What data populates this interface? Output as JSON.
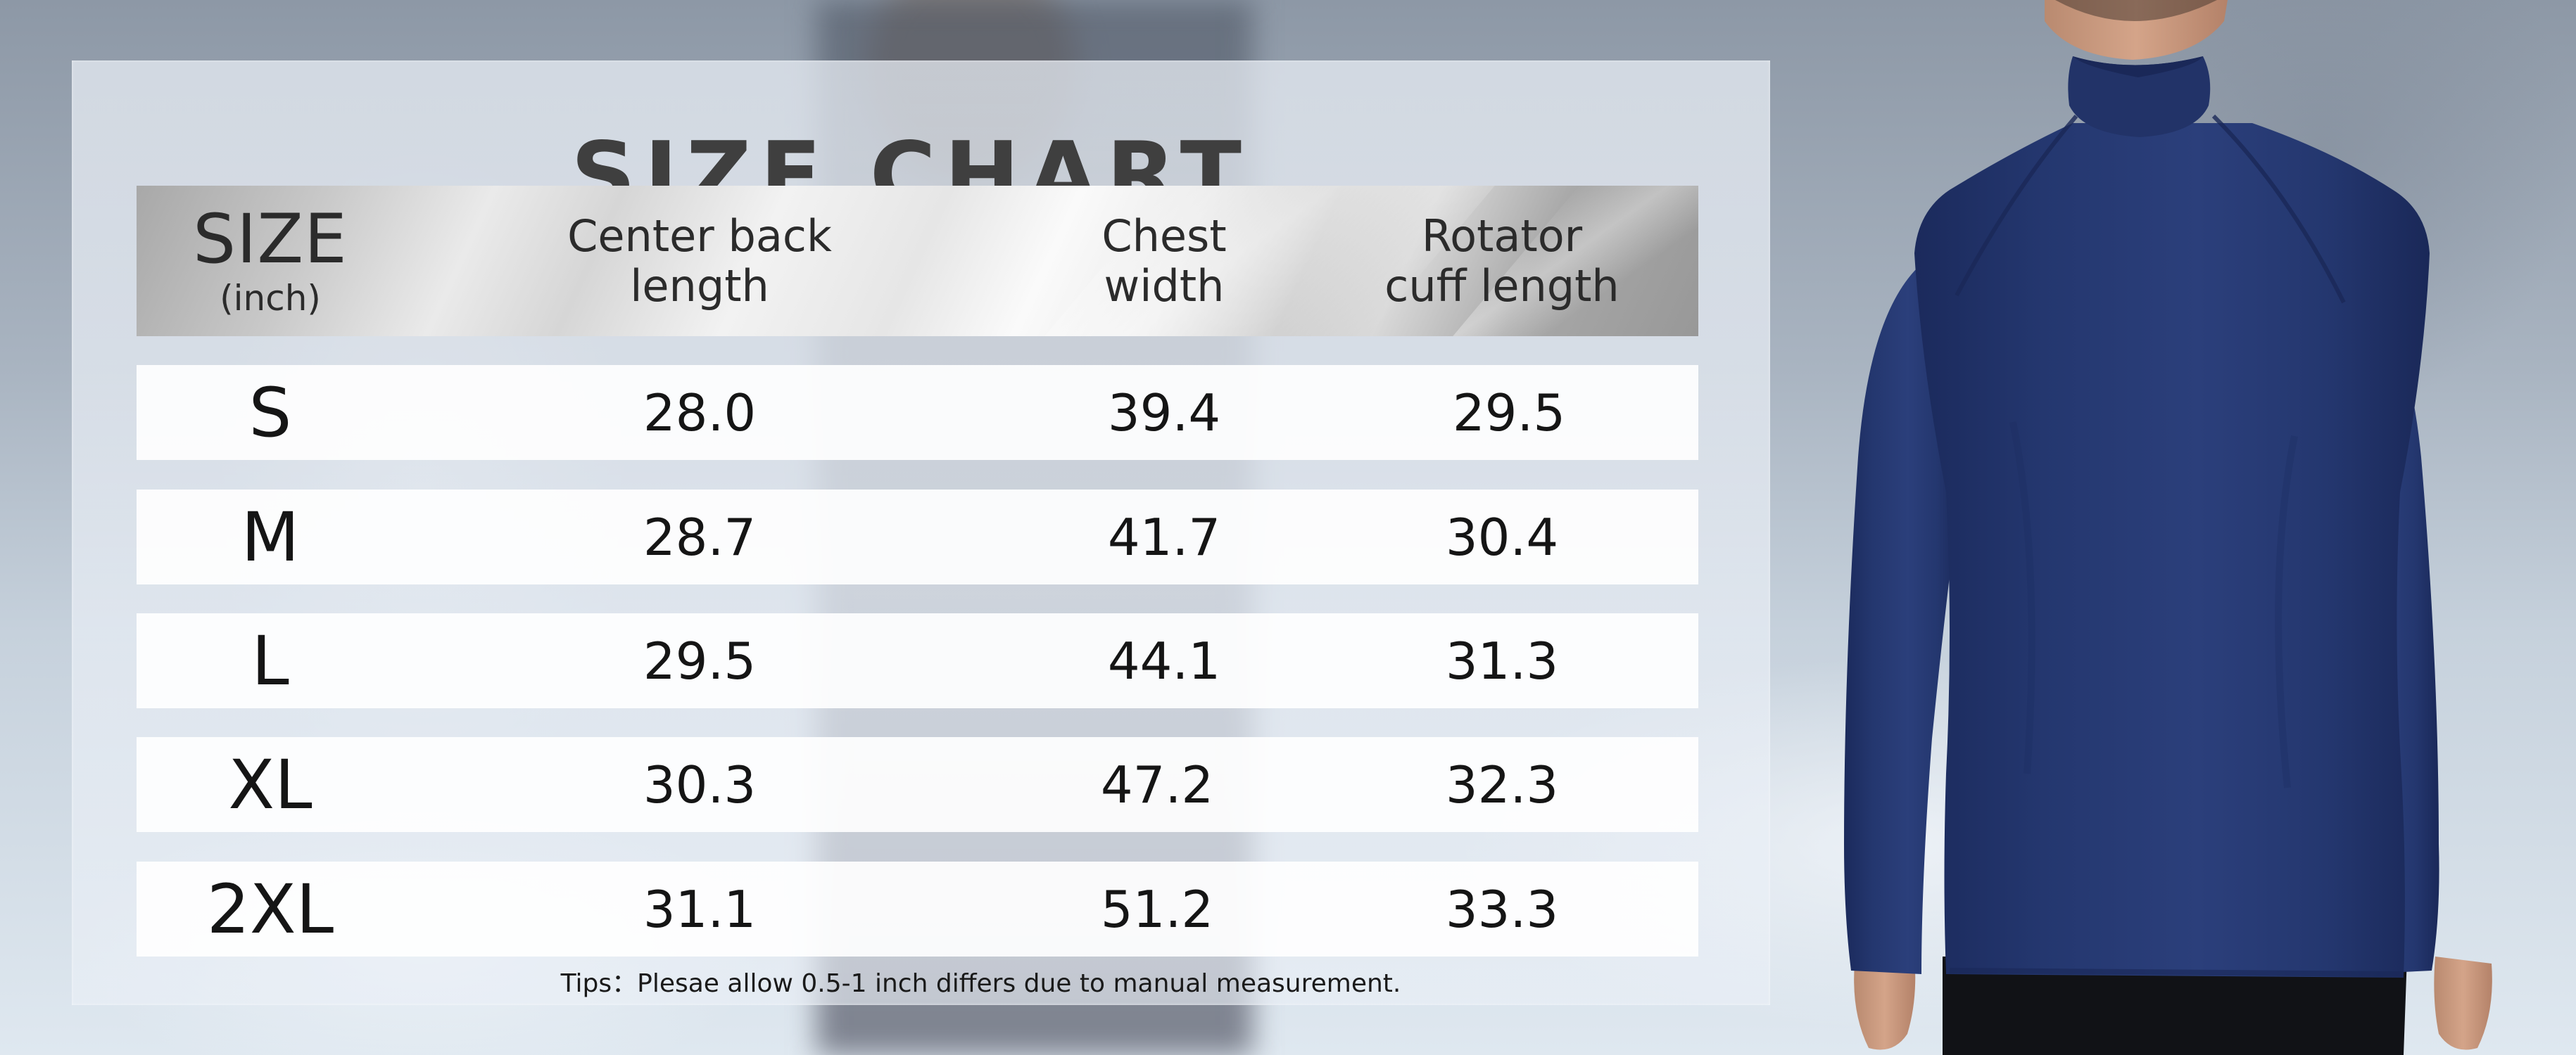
{
  "title": "SIZE CHART",
  "columns": {
    "size": {
      "label": "SIZE",
      "unit": "(inch)"
    },
    "center_back": "Center back length",
    "chest": "Chest width",
    "cuff": "Rotator cuff length"
  },
  "rows": [
    {
      "size": "S",
      "center_back": "28.0",
      "chest": "39.4",
      "cuff": "29.5"
    },
    {
      "size": "M",
      "center_back": "28.7",
      "chest": "41.7",
      "cuff": "30.4"
    },
    {
      "size": "L",
      "center_back": "29.5",
      "chest": "44.1",
      "cuff": "31.3"
    },
    {
      "size": "XL",
      "center_back": "30.3",
      "chest": "47.2",
      "cuff": "32.3"
    },
    {
      "size": "2XL",
      "center_back": "31.1",
      "chest": "51.2",
      "cuff": "33.3"
    }
  ],
  "tip": "Tips：Plesae allow 0.5-1 inch differs due to manual measurement.",
  "colors": {
    "shirt": "#243670",
    "title": "#3f3f3f"
  },
  "icons": {
    "model": "long-sleeve-quarter-zip-back-view"
  }
}
